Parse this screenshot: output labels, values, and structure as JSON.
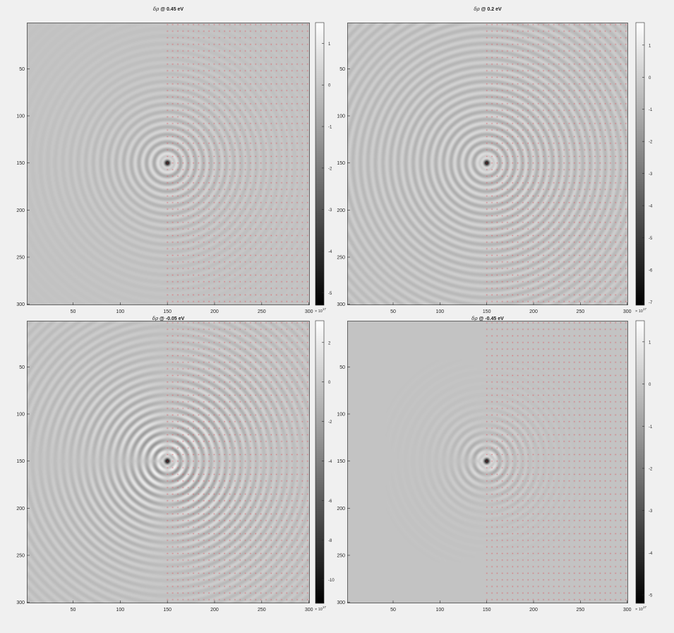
{
  "chart_data": [
    {
      "type": "heatmap",
      "title_symbol": "δρ",
      "title": "@ 0.45 eV",
      "xlim": [
        1,
        301
      ],
      "ylim": [
        1,
        301
      ],
      "xticks": [
        "50",
        "100",
        "150",
        "200",
        "250",
        "300"
      ],
      "yticks": [
        "50",
        "100",
        "150",
        "200",
        "250",
        "300"
      ],
      "colorbar": {
        "ticks": [
          "1",
          "0",
          "-1",
          "-2",
          "-3",
          "-4",
          "-5"
        ],
        "min": -5.3,
        "max": 1.5,
        "exponent_label": "× 10",
        "exponent": "17"
      },
      "impurity": [
        150,
        150
      ],
      "lattice_region_x_start": 150,
      "ripple_strength": 0.55,
      "ripple_decay": 55,
      "anisotropy": 0
    },
    {
      "type": "heatmap",
      "title_symbol": "δρ",
      "title": "@ 0.2 eV",
      "xlim": [
        1,
        301
      ],
      "ylim": [
        1,
        301
      ],
      "xticks": [
        "50",
        "100",
        "150",
        "200",
        "250",
        "300"
      ],
      "yticks": [
        "50",
        "100",
        "150",
        "200",
        "250",
        "300"
      ],
      "colorbar": {
        "ticks": [
          "1",
          "0",
          "-1",
          "-2",
          "-3",
          "-4",
          "-5",
          "-6",
          "-7"
        ],
        "min": -7.1,
        "max": 1.7,
        "exponent_label": "× 10",
        "exponent": "17"
      },
      "impurity": [
        150,
        150
      ],
      "lattice_region_x_start": 150,
      "ripple_strength": 0.45,
      "ripple_decay": 160,
      "anisotropy": 0.25
    },
    {
      "type": "heatmap",
      "title_symbol": "δρ",
      "title": "@ -0.05 eV",
      "xlim": [
        1,
        301
      ],
      "ylim": [
        1,
        301
      ],
      "xticks": [
        "50",
        "100",
        "150",
        "200",
        "250",
        "300"
      ],
      "yticks": [
        "50",
        "100",
        "150",
        "200",
        "250",
        "300"
      ],
      "colorbar": {
        "ticks": [
          "2",
          "0",
          "-2",
          "-4",
          "-6",
          "-8",
          "-10"
        ],
        "min": -11.2,
        "max": 3.1,
        "exponent_label": "× 10",
        "exponent": "17"
      },
      "impurity": [
        150,
        150
      ],
      "lattice_region_x_start": 150,
      "ripple_strength": 0.8,
      "ripple_decay": 90,
      "anisotropy": 1
    },
    {
      "type": "heatmap",
      "title_symbol": "δρ",
      "title": "@ -0.45 eV",
      "xlim": [
        1,
        301
      ],
      "ylim": [
        1,
        301
      ],
      "xticks": [
        "50",
        "100",
        "150",
        "200",
        "250",
        "300"
      ],
      "yticks": [
        "50",
        "100",
        "150",
        "200",
        "250",
        "300"
      ],
      "colorbar": {
        "ticks": [
          "1",
          "0",
          "-1",
          "-2",
          "-3",
          "-4",
          "-5"
        ],
        "min": -5.2,
        "max": 1.5,
        "exponent_label": "× 10",
        "exponent": "17"
      },
      "impurity": [
        150,
        150
      ],
      "lattice_region_x_start": 150,
      "ripple_strength": 0.6,
      "ripple_decay": 28,
      "anisotropy": 1
    }
  ],
  "colors": {
    "lattice_dot": "#e0505a",
    "background": "#f0f0f0"
  }
}
